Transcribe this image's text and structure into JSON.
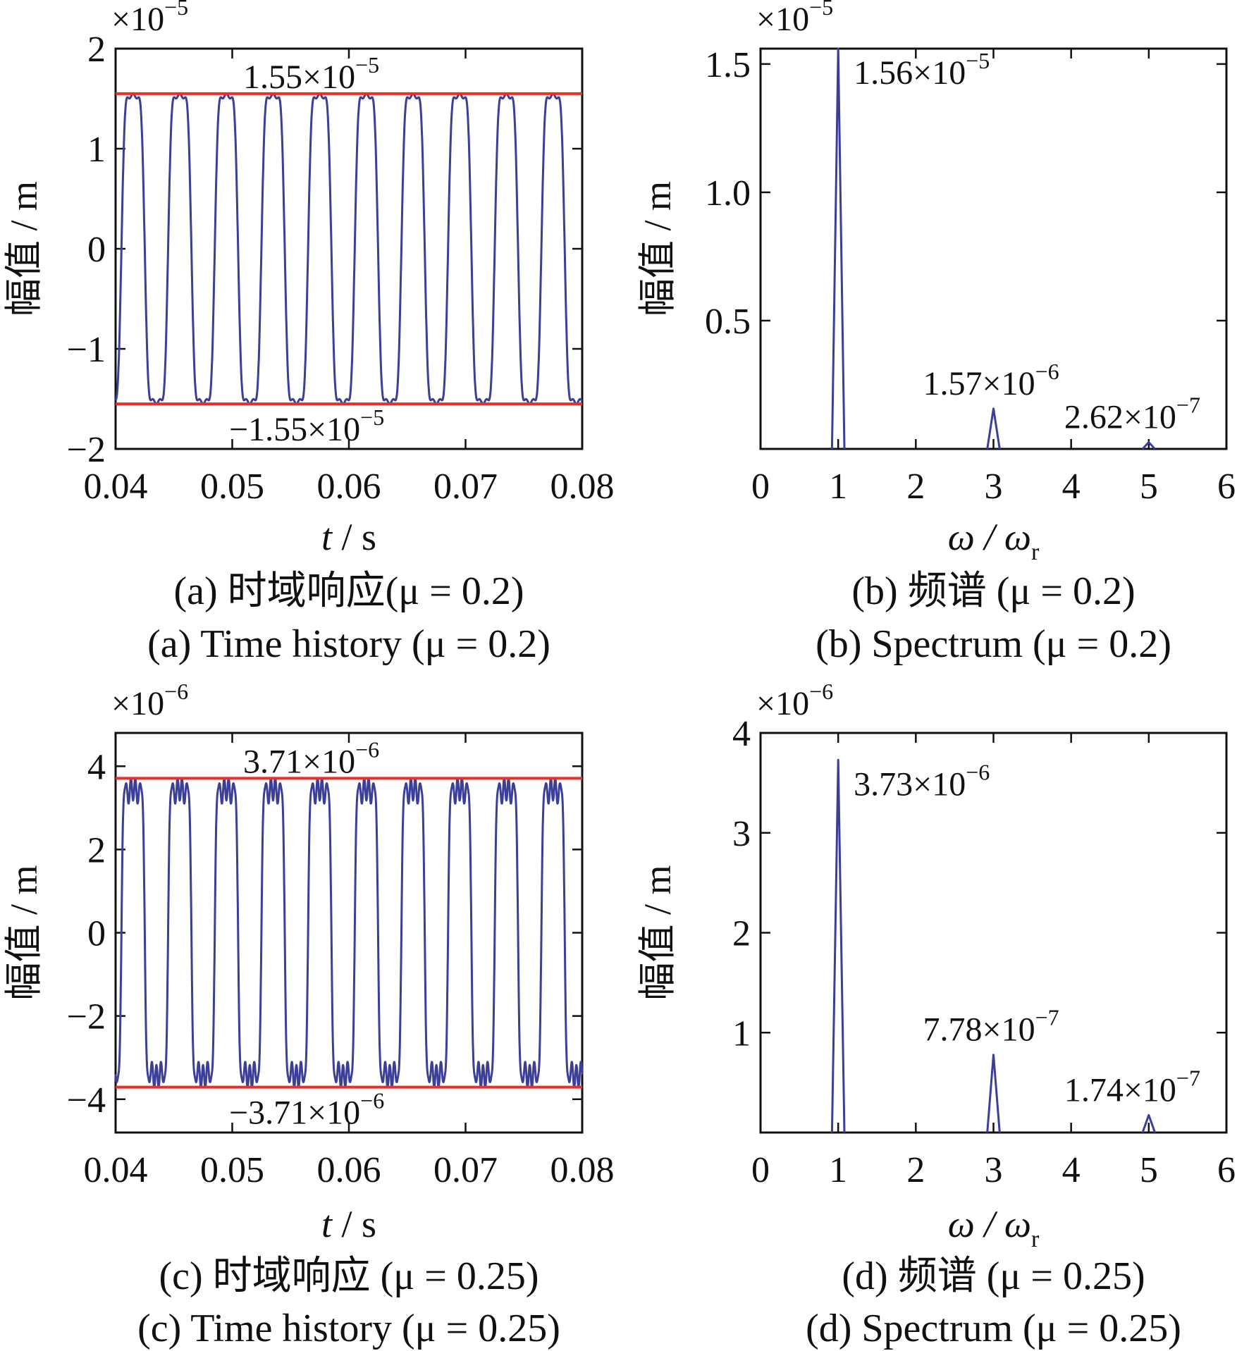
{
  "colors": {
    "signal": "#3c3f98",
    "reference": "#e8302a",
    "axis": "#111111"
  },
  "chart_data": [
    {
      "id": "a",
      "type": "line",
      "panel": "time",
      "exponent_label": "×10",
      "exponent": "−5",
      "ylabel": "幅值 / m",
      "xlabel_var": "t",
      "xlabel_unit": " / s",
      "xlim": [
        0.04,
        0.08
      ],
      "ylim": [
        -2,
        2
      ],
      "xticks": [
        0.04,
        0.05,
        0.06,
        0.07,
        0.08
      ],
      "xtick_labels": [
        "0.04",
        "0.05",
        "0.06",
        "0.07",
        "0.08"
      ],
      "yticks": [
        2,
        1,
        0,
        -1,
        -2
      ],
      "ytick_labels": [
        "2",
        "1",
        "0",
        "−1",
        "−2"
      ],
      "amplitude": 1.55,
      "period": 0.004,
      "waveform": "rounded-square",
      "upper_line": 1.55,
      "lower_line": -1.55,
      "upper_label": "1.55×10",
      "upper_label_exp": "−5",
      "lower_label": "−1.55×10",
      "lower_label_exp": "−5",
      "caption_cn": "(a)  时域响应(μ = 0.2)",
      "caption_en": "(a)  Time history (μ = 0.2)"
    },
    {
      "id": "b",
      "type": "line",
      "panel": "spectrum",
      "exponent_label": "×10",
      "exponent": "−5",
      "ylabel": "幅值 / m",
      "xlabel_var": "ω / ω",
      "xlabel_sub": "r",
      "xlim": [
        0,
        6
      ],
      "ylim": [
        0,
        1.56
      ],
      "xticks": [
        0,
        1,
        2,
        3,
        4,
        5,
        6
      ],
      "xtick_labels": [
        "0",
        "1",
        "2",
        "3",
        "4",
        "5",
        "6"
      ],
      "yticks": [
        1.5,
        1.0,
        0.5
      ],
      "ytick_labels": [
        "1.5",
        "1.0",
        "0.5"
      ],
      "peaks": [
        {
          "x": 1,
          "y": 1.56,
          "label": "1.56×10",
          "exp": "−5"
        },
        {
          "x": 3,
          "y": 0.157,
          "label": "1.57×10",
          "exp": "−6"
        },
        {
          "x": 5,
          "y": 0.0262,
          "label": "2.62×10",
          "exp": "−7"
        }
      ],
      "caption_cn": "(b)  频谱 (μ = 0.2)",
      "caption_en": "(b)  Spectrum (μ = 0.2)"
    },
    {
      "id": "c",
      "type": "line",
      "panel": "time",
      "exponent_label": "×10",
      "exponent": "−6",
      "ylabel": "幅值 / m",
      "xlabel_var": "t",
      "xlabel_unit": " / s",
      "xlim": [
        0.04,
        0.08
      ],
      "ylim": [
        -4.8,
        4.8
      ],
      "xticks": [
        0.04,
        0.05,
        0.06,
        0.07,
        0.08
      ],
      "xtick_labels": [
        "0.04",
        "0.05",
        "0.06",
        "0.07",
        "0.08"
      ],
      "yticks": [
        4,
        2,
        0,
        -2,
        -4
      ],
      "ytick_labels": [
        "4",
        "2",
        "0",
        "−2",
        "−4"
      ],
      "amplitude": 3.71,
      "period": 0.004,
      "waveform": "square-with-harmonics",
      "upper_line": 3.71,
      "lower_line": -3.71,
      "upper_label": "3.71×10",
      "upper_label_exp": "−6",
      "lower_label": "−3.71×10",
      "lower_label_exp": "−6",
      "caption_cn": "(c)  时域响应 (μ = 0.25)",
      "caption_en": "(c)  Time history (μ = 0.25)"
    },
    {
      "id": "d",
      "type": "line",
      "panel": "spectrum",
      "exponent_label": "×10",
      "exponent": "−6",
      "ylabel": "幅值 / m",
      "xlabel_var": "ω / ω",
      "xlabel_sub": "r",
      "xlim": [
        0,
        6
      ],
      "ylim": [
        0,
        4
      ],
      "xticks": [
        0,
        1,
        2,
        3,
        4,
        5,
        6
      ],
      "xtick_labels": [
        "0",
        "1",
        "2",
        "3",
        "4",
        "5",
        "6"
      ],
      "yticks": [
        4,
        3,
        2,
        1
      ],
      "ytick_labels": [
        "4",
        "3",
        "2",
        "1"
      ],
      "peaks": [
        {
          "x": 1,
          "y": 3.73,
          "label": "3.73×10",
          "exp": "−6"
        },
        {
          "x": 3,
          "y": 0.778,
          "label": "7.78×10",
          "exp": "−7"
        },
        {
          "x": 5,
          "y": 0.174,
          "label": "1.74×10",
          "exp": "−7"
        }
      ],
      "caption_cn": "(d)  频谱 (μ = 0.25)",
      "caption_en": "(d)  Spectrum (μ = 0.25)"
    }
  ]
}
